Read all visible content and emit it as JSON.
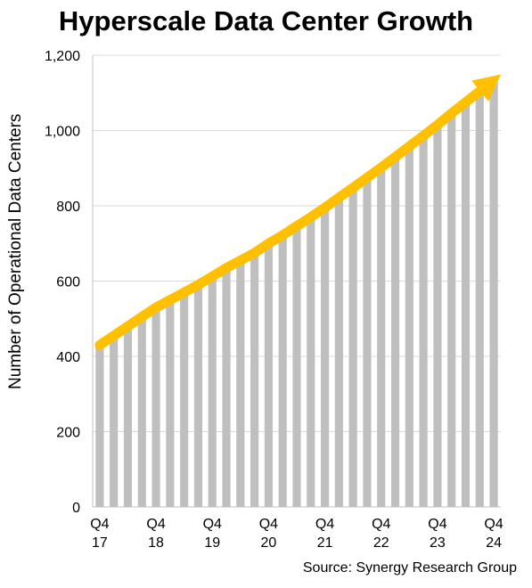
{
  "chart_data": {
    "type": "bar",
    "title": "Hyperscale Data Center Growth",
    "ylabel": "Number of Operational Data Centers",
    "xlabel": "",
    "ylim": [
      0,
      1200
    ],
    "yticks": [
      {
        "value": 0,
        "label": "0"
      },
      {
        "value": 200,
        "label": "200"
      },
      {
        "value": 400,
        "label": "400"
      },
      {
        "value": 600,
        "label": "600"
      },
      {
        "value": 800,
        "label": "800"
      },
      {
        "value": 1000,
        "label": "1,000"
      },
      {
        "value": 1200,
        "label": "1,200"
      }
    ],
    "categories": [
      "Q4 17",
      "Q1 18",
      "Q2 18",
      "Q3 18",
      "Q4 18",
      "Q1 19",
      "Q2 19",
      "Q3 19",
      "Q4 19",
      "Q1 20",
      "Q2 20",
      "Q3 20",
      "Q4 20",
      "Q1 21",
      "Q2 21",
      "Q3 21",
      "Q4 21",
      "Q1 22",
      "Q2 22",
      "Q3 22",
      "Q4 22",
      "Q1 23",
      "Q2 23",
      "Q3 23",
      "Q4 23",
      "Q1 24",
      "Q2 24",
      "Q3 24",
      "Q4 24"
    ],
    "xtick_labels": [
      {
        "index": 0,
        "line1": "Q4",
        "line2": "17"
      },
      {
        "index": 4,
        "line1": "Q4",
        "line2": "18"
      },
      {
        "index": 8,
        "line1": "Q4",
        "line2": "19"
      },
      {
        "index": 12,
        "line1": "Q4",
        "line2": "20"
      },
      {
        "index": 16,
        "line1": "Q4",
        "line2": "21"
      },
      {
        "index": 20,
        "line1": "Q4",
        "line2": "22"
      },
      {
        "index": 24,
        "line1": "Q4",
        "line2": "23"
      },
      {
        "index": 28,
        "line1": "Q4",
        "line2": "24"
      }
    ],
    "values": [
      430,
      455,
      480,
      505,
      530,
      550,
      570,
      590,
      612,
      635,
      655,
      675,
      700,
      722,
      746,
      770,
      795,
      822,
      848,
      875,
      902,
      930,
      958,
      986,
      1015,
      1046,
      1075,
      1105,
      1135
    ],
    "bar_color": "#bfbfbf",
    "grid": true,
    "trend_arrow": {
      "color": "#ffc000",
      "from_value": 430,
      "to_value": 1135
    }
  },
  "source": "Source: Synergy Research Group"
}
